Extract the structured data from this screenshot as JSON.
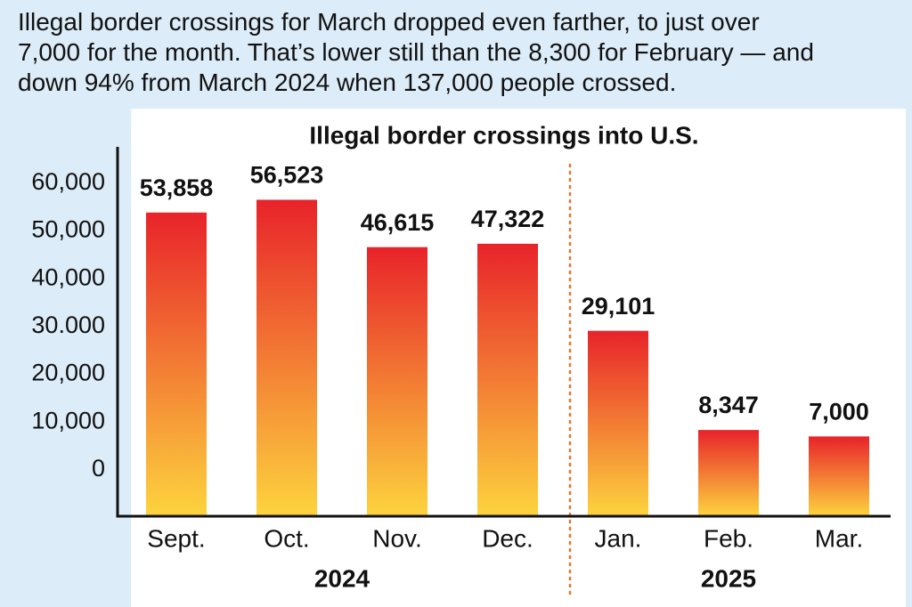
{
  "headline": [
    "Illegal border crossings for March dropped even farther, to just over",
    "7,000 for the month. That’s lower still than the 8,300 for February — and",
    "down 94% from March 2024 when 137,000 people crossed."
  ],
  "chart_data": {
    "type": "bar",
    "title": "Illegal border crossings into U.S.",
    "categories": [
      "Sept.",
      "Oct.",
      "Nov.",
      "Dec.",
      "Jan.",
      "Feb.",
      "Mar."
    ],
    "year_labels": [
      "2024",
      "2025"
    ],
    "values": [
      53858,
      56523,
      46615,
      47322,
      29101,
      8347,
      7000
    ],
    "value_labels": [
      "53,858",
      "56,523",
      "46,615",
      "47,322",
      "29,101",
      "8,347",
      "7,000"
    ],
    "color": [
      "#e8232a",
      "#fdd43e"
    ],
    "ylim": [
      -9700,
      67600
    ],
    "yticks": [
      {
        "value": 60000,
        "label": "60,000"
      },
      {
        "value": 50000,
        "label": "50,000"
      },
      {
        "value": 40000,
        "label": "40,000"
      },
      {
        "value": 30000,
        "label": "30.000"
      },
      {
        "value": 20000,
        "label": "20,000"
      },
      {
        "value": 10000,
        "label": "10,000"
      },
      0
    ],
    "grid": false
  }
}
